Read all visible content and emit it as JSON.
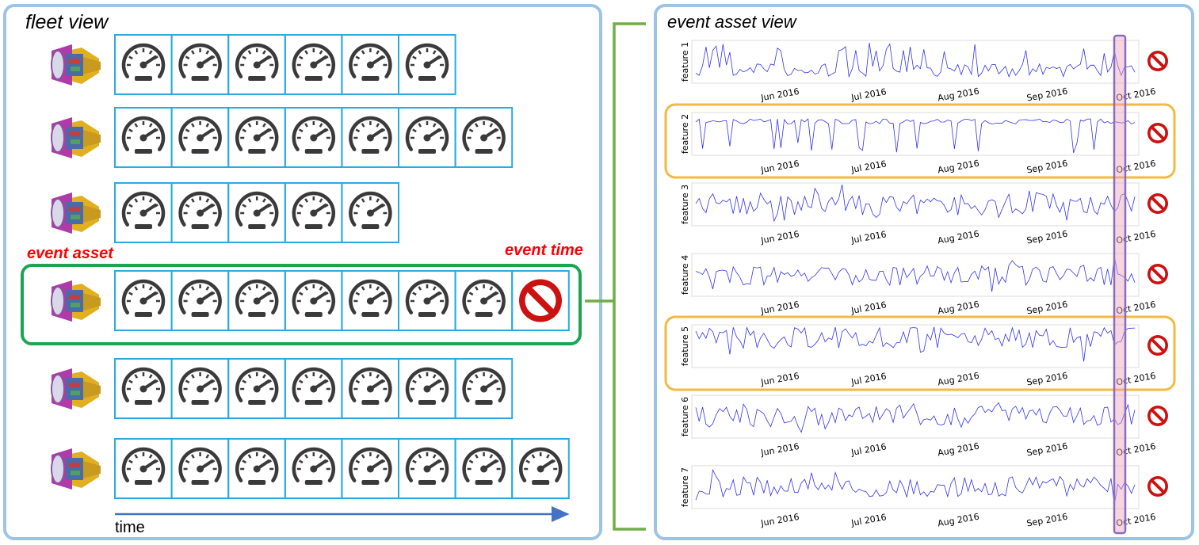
{
  "fleet_view": {
    "title": "fleet view",
    "event_asset_label": "event asset",
    "event_time_label": "event time",
    "time_label": "time",
    "rows": [
      {
        "gauges": 6,
        "event": false
      },
      {
        "gauges": 7,
        "event": false
      },
      {
        "gauges": 5,
        "event": false
      },
      {
        "gauges": 7,
        "event": true
      },
      {
        "gauges": 7,
        "event": false
      },
      {
        "gauges": 8,
        "event": false
      }
    ],
    "event_row_index": 3
  },
  "event_asset_view": {
    "title": "event asset view",
    "month_labels": [
      "Jun 2016",
      "Jul 2016",
      "Aug 2016",
      "Sep 2016",
      "Oct 2016"
    ],
    "features": [
      {
        "label": "feature 1",
        "highlighted": false
      },
      {
        "label": "feature 2",
        "highlighted": true
      },
      {
        "label": "feature 3",
        "highlighted": false
      },
      {
        "label": "feature 4",
        "highlighted": false
      },
      {
        "label": "feature 5",
        "highlighted": true
      },
      {
        "label": "feature 6",
        "highlighted": false
      },
      {
        "label": "feature 7",
        "highlighted": false
      }
    ]
  },
  "colors": {
    "panel_border": "#9dc3e6",
    "gauge_box": "#29abe2",
    "event_row": "#1aa651",
    "feature_highlight": "#f4b942",
    "event_column": "#8e6bbf",
    "event_column_fill": "#e8a1b8",
    "series_line": "#3333ee",
    "bracket": "#70ad47",
    "time_arrow": "#4472c4",
    "label_red": "#ff0000"
  }
}
